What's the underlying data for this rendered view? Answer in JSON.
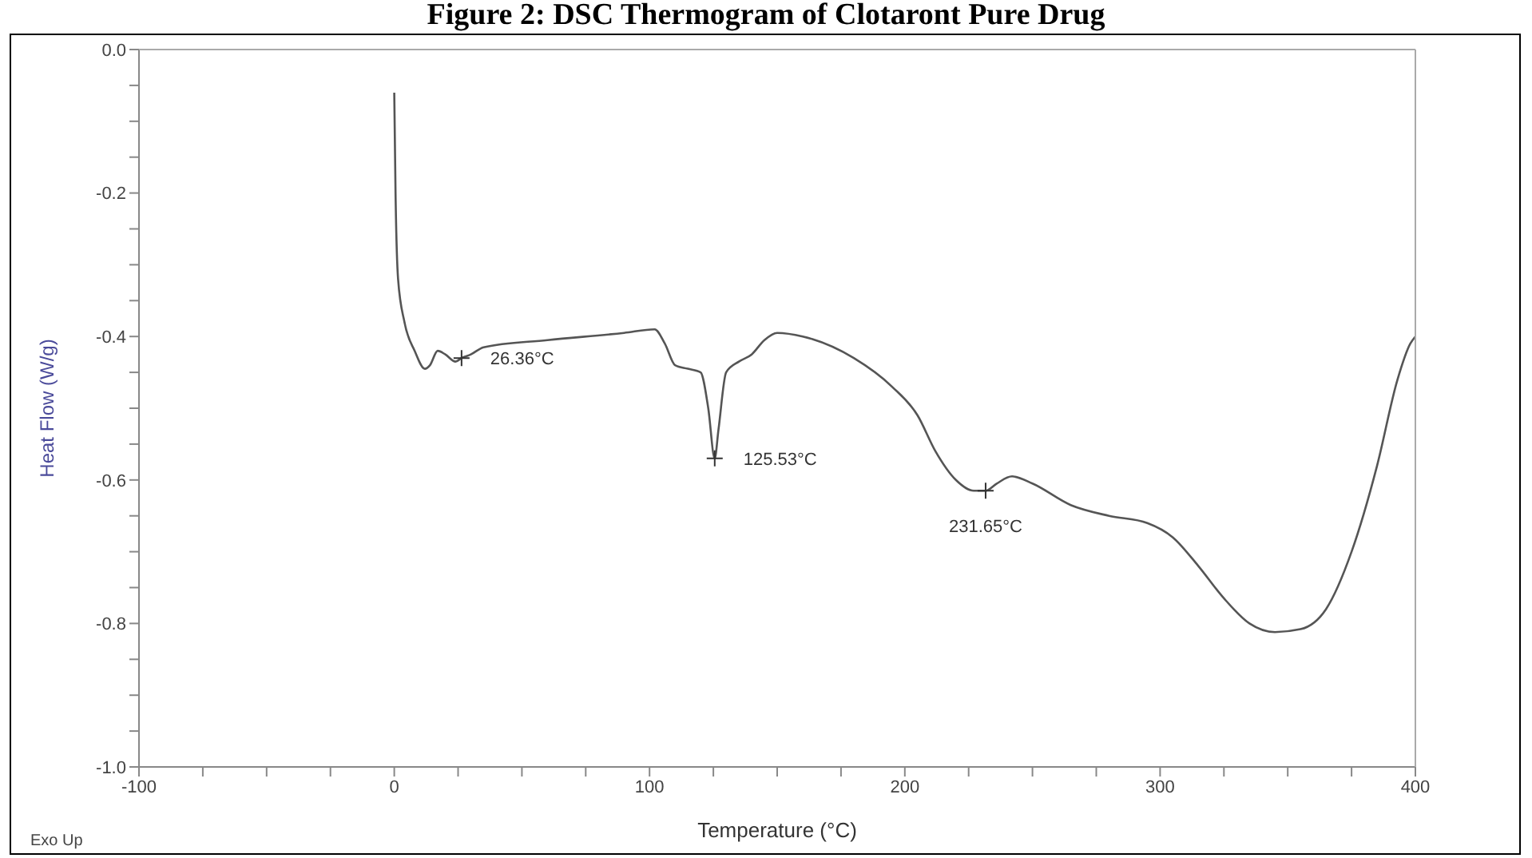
{
  "chart_data": {
    "type": "line",
    "title": "Figure 2: DSC Thermogram of Clotaront Pure Drug",
    "xlabel": "Temperature (°C)",
    "ylabel": "Heat Flow (W/g)",
    "x": [
      0,
      0.5,
      1.5,
      4,
      8,
      12,
      14,
      17,
      20,
      24,
      26.36,
      30,
      35,
      60,
      90,
      102,
      106,
      110,
      115,
      120,
      123,
      125.53,
      127,
      130,
      135,
      140,
      145,
      150,
      160,
      180,
      195,
      205,
      212,
      220,
      227,
      231.65,
      236,
      242,
      250,
      265,
      280,
      295,
      305,
      315,
      325,
      335,
      345,
      355,
      365,
      375,
      385,
      393,
      398,
      400
    ],
    "series": [
      {
        "color": "#555555",
        "values": [
          -0.06,
          -0.2,
          -0.32,
          -0.38,
          -0.42,
          -0.445,
          -0.44,
          -0.42,
          -0.425,
          -0.435,
          -0.43,
          -0.425,
          -0.415,
          -0.405,
          -0.395,
          -0.39,
          -0.41,
          -0.44,
          -0.445,
          -0.45,
          -0.5,
          -0.57,
          -0.53,
          -0.45,
          -0.435,
          -0.425,
          -0.405,
          -0.395,
          -0.4,
          -0.43,
          -0.47,
          -0.51,
          -0.56,
          -0.6,
          -0.615,
          -0.615,
          -0.605,
          -0.595,
          -0.605,
          -0.635,
          -0.65,
          -0.66,
          -0.68,
          -0.72,
          -0.765,
          -0.8,
          -0.812,
          -0.808,
          -0.78,
          -0.7,
          -0.58,
          -0.46,
          -0.41,
          -0.4
        ]
      }
    ],
    "xlim": [
      -100,
      400
    ],
    "xticks": [
      -100,
      {
        "value": -75,
        "label": null
      },
      {
        "value": -50,
        "label": null
      },
      {
        "value": -25,
        "label": null
      },
      0,
      {
        "value": 25,
        "label": null
      },
      {
        "value": 50,
        "label": null
      },
      {
        "value": 75,
        "label": null
      },
      100,
      {
        "value": 125,
        "label": null
      },
      {
        "value": 150,
        "label": null
      },
      {
        "value": 175,
        "label": null
      },
      200,
      {
        "value": 225,
        "label": null
      },
      {
        "value": 250,
        "label": null
      },
      {
        "value": 275,
        "label": null
      },
      300,
      {
        "value": 325,
        "label": null
      },
      {
        "value": 350,
        "label": null
      },
      {
        "value": 375,
        "label": null
      },
      400
    ],
    "ylim": [
      -1,
      0
    ],
    "yticks": [
      {
        "value": -1,
        "label": "-1.0"
      },
      {
        "value": -0.95,
        "label": null
      },
      {
        "value": -0.9,
        "label": null
      },
      {
        "value": -0.85,
        "label": null
      },
      -0.8,
      {
        "value": -0.75,
        "label": null
      },
      {
        "value": -0.7,
        "label": null
      },
      {
        "value": -0.65,
        "label": null
      },
      -0.6,
      {
        "value": -0.55,
        "label": null
      },
      {
        "value": -0.5,
        "label": null
      },
      {
        "value": -0.45,
        "label": null
      },
      -0.4,
      {
        "value": -0.35,
        "label": null
      },
      {
        "value": -0.3,
        "label": null
      },
      {
        "value": -0.25,
        "label": null
      },
      -0.2,
      {
        "value": -0.15,
        "label": null
      },
      {
        "value": -0.1,
        "label": null
      },
      {
        "value": -0.05,
        "label": null
      },
      {
        "value": 0,
        "label": "0.0"
      }
    ],
    "grid": false,
    "marker": "none",
    "line_style": "solid",
    "annotations": [
      {
        "text": "26.36°C",
        "x": 26.36,
        "y": -0.43
      },
      {
        "text": "125.53°C",
        "x": 125.53,
        "y": -0.57
      },
      {
        "text": "231.65°C",
        "x": 231.65,
        "y": -0.615
      },
      "Exo Up"
    ]
  }
}
